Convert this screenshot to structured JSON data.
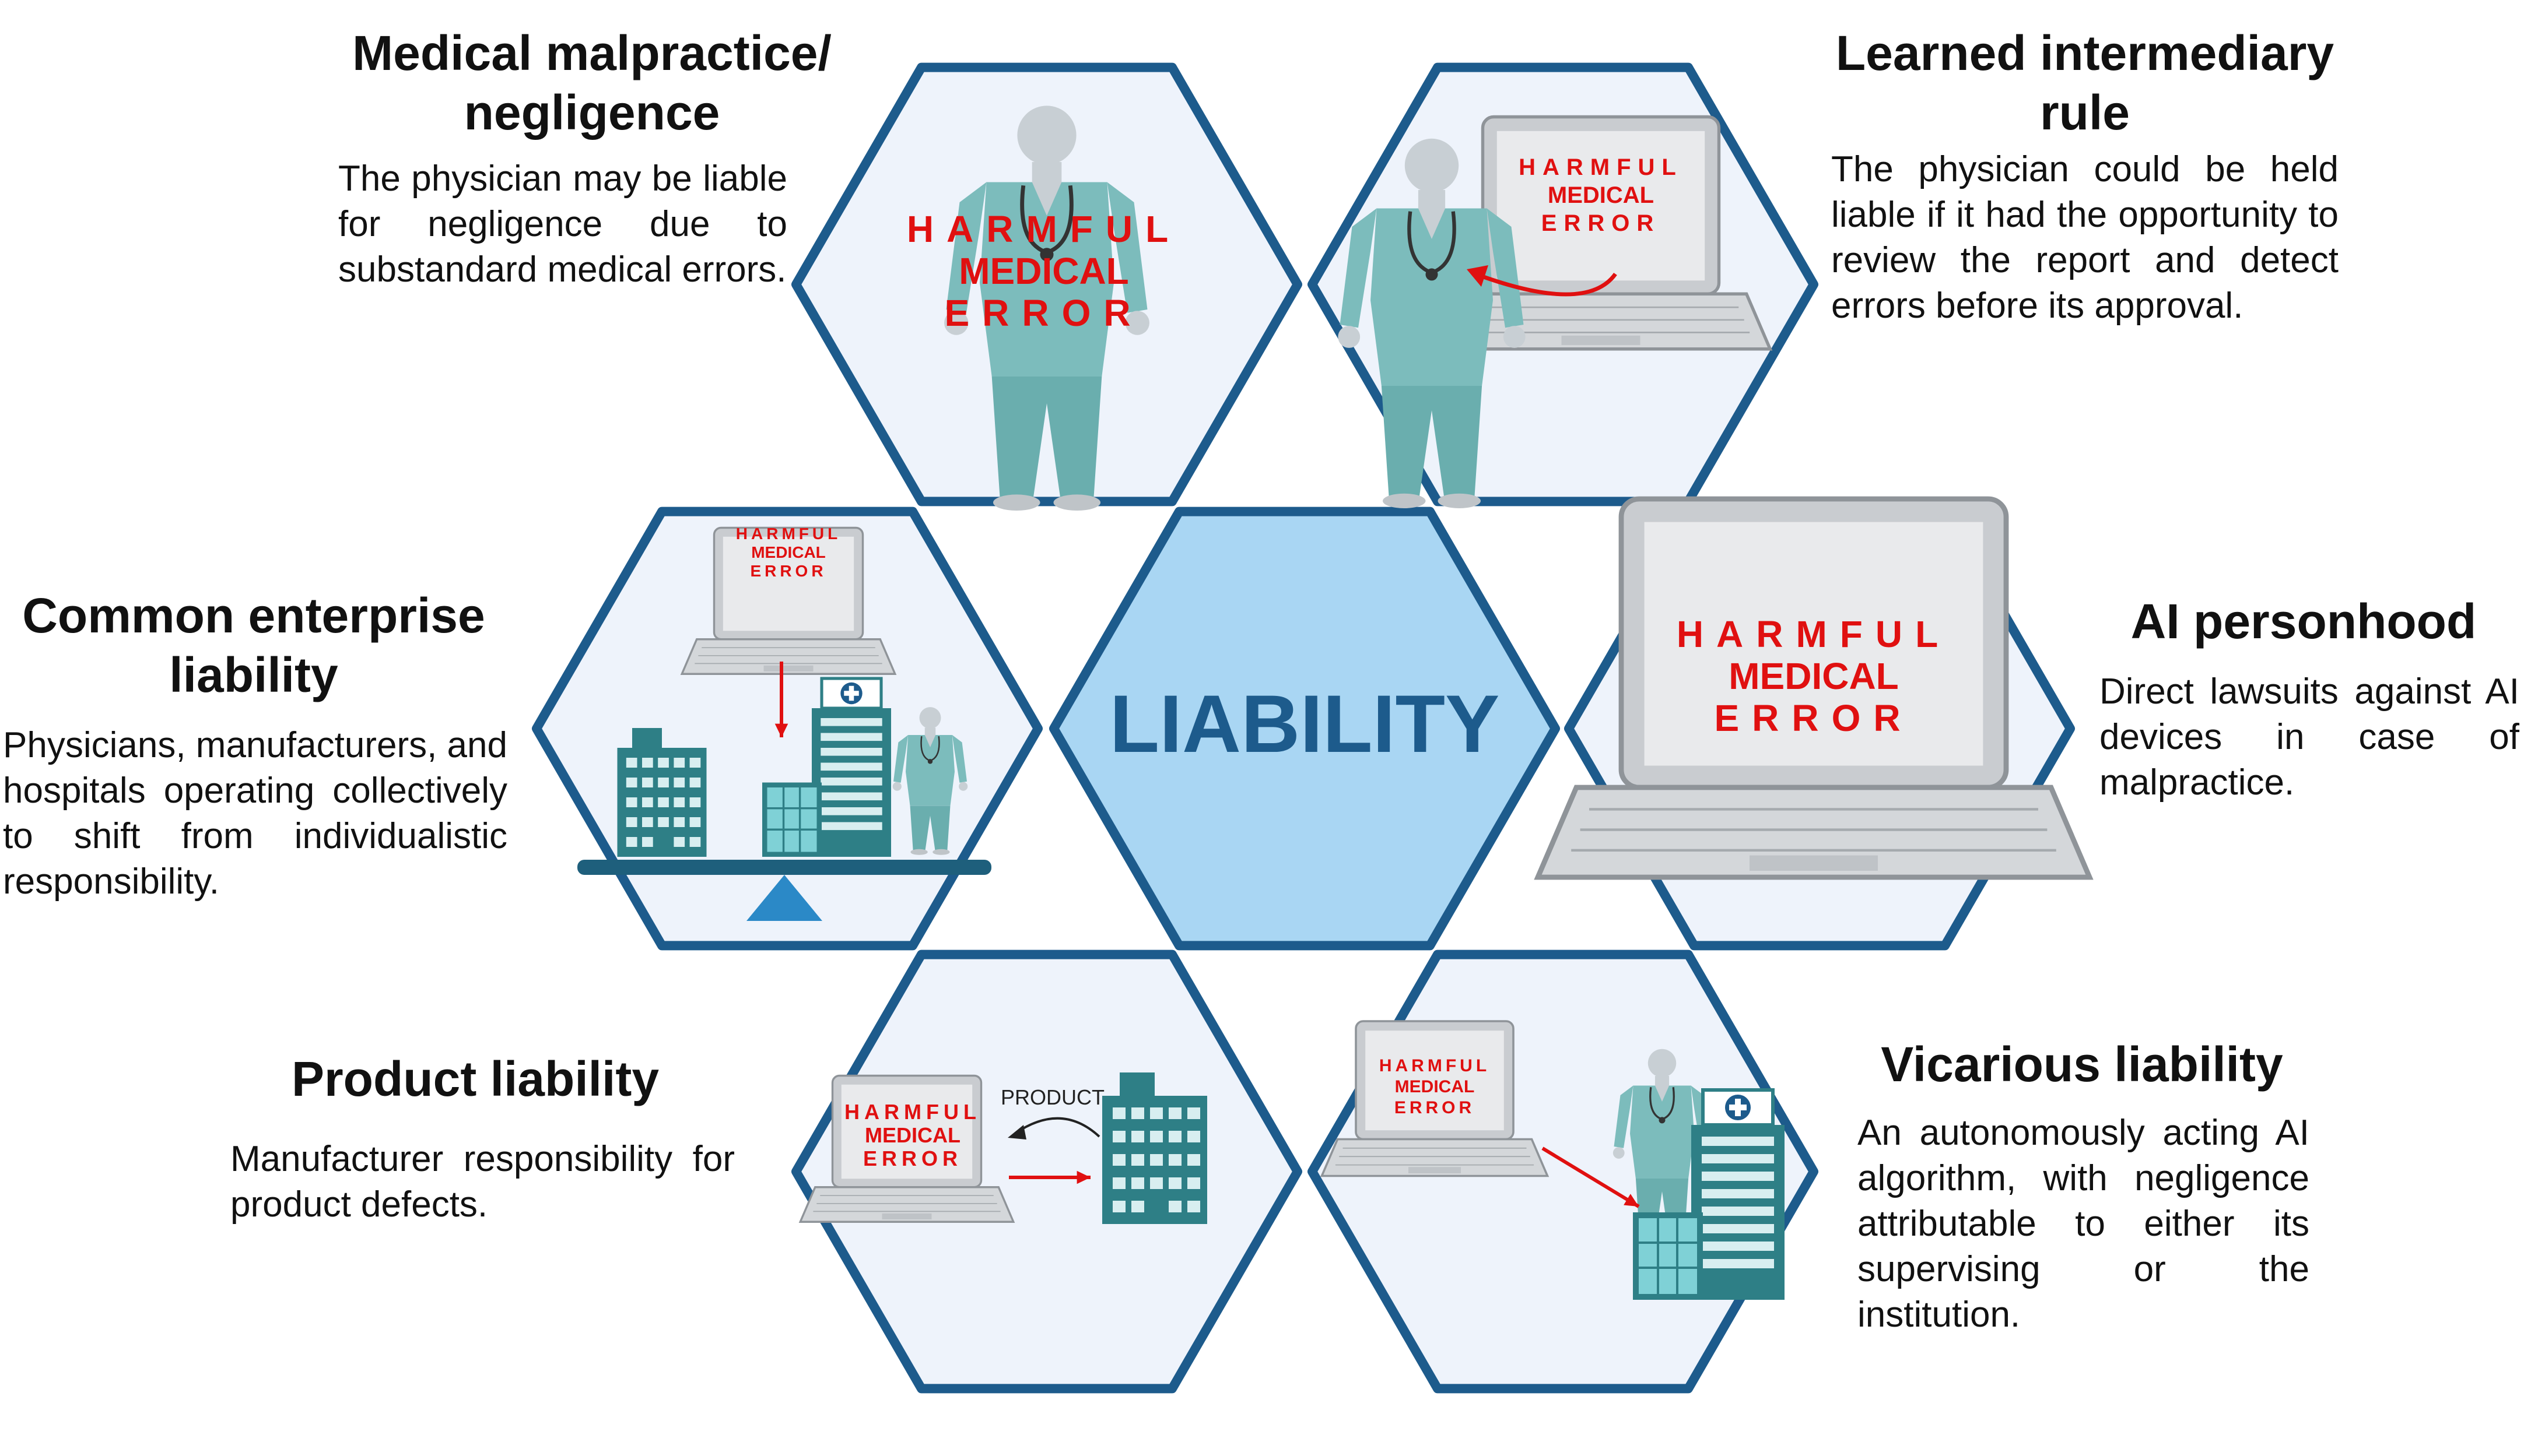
{
  "center": {
    "label": "LIABILITY"
  },
  "error_text": {
    "line1": "HARMFUL",
    "line2": "MEDICAL",
    "line3": "ERROR"
  },
  "product_label": "PRODUCT",
  "sections": {
    "malpractice": {
      "title_l1": "Medical malpractice/",
      "title_l2": "negligence",
      "description": "The physician may be liable for negligence due to substandard medical errors."
    },
    "learned": {
      "title_l1": "Learned intermediary",
      "title_l2": "rule",
      "description": "The physician could be held liable if it had the opportunity to review the report and detect errors before its approval."
    },
    "enterprise": {
      "title_l1": "Common enterprise",
      "title_l2": "liability",
      "description": "Physicians, manufacturers, and hospitals operating collectively to shift from individualistic responsibility."
    },
    "personhood": {
      "title_l1": "AI personhood",
      "description": "Direct lawsuits against AI devices in case of malpractice."
    },
    "product": {
      "title_l1": "Product liability",
      "description": "Manufacturer responsibility for product defects."
    },
    "vicarious": {
      "title_l1": "Vicarious liability",
      "description": "An autonomously acting AI algorithm, with negligence attributable to either its supervising or the institution."
    }
  },
  "colors": {
    "hex_border": "#1d5b8c",
    "hex_fill": "#eef3fb",
    "center_fill": "#a9d6f3",
    "center_text": "#1d5b8c",
    "error_red": "#e01010",
    "teal": "#2a8a90",
    "scrubs": "#7cbcbc"
  }
}
